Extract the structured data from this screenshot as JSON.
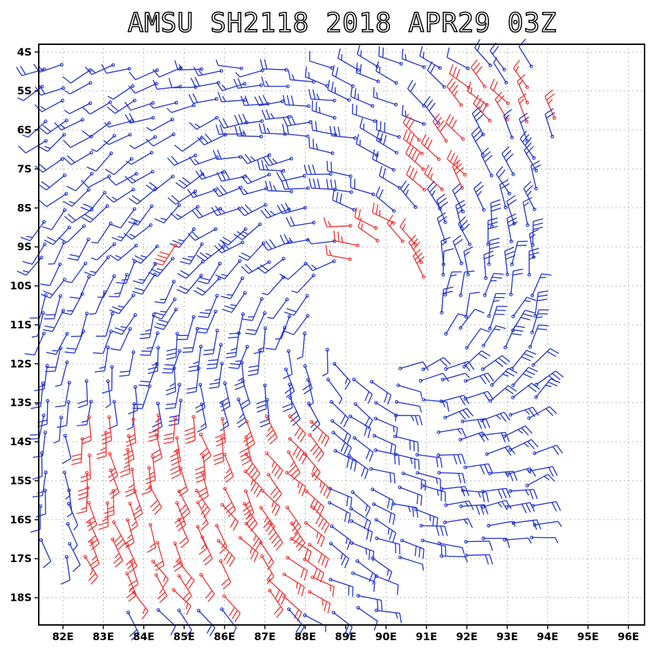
{
  "title": "AMSU SH2118 2018 APR29 03Z",
  "chart_data": {
    "type": "wind-barb",
    "title": "AMSU SH2118 2018 APR29 03Z",
    "xlabel": "",
    "ylabel": "",
    "xlim": [
      81.4,
      96.4
    ],
    "ylim": [
      -18.7,
      -3.8
    ],
    "x_ticks": [
      82,
      83,
      84,
      85,
      86,
      87,
      88,
      89,
      90,
      91,
      92,
      93,
      94,
      95,
      96
    ],
    "x_tick_labels": [
      "82E",
      "83E",
      "84E",
      "85E",
      "86E",
      "87E",
      "88E",
      "89E",
      "90E",
      "91E",
      "92E",
      "93E",
      "94E",
      "95E",
      "96E"
    ],
    "y_ticks": [
      -4,
      -5,
      -6,
      -7,
      -8,
      -9,
      -10,
      -11,
      -12,
      -13,
      -14,
      -15,
      -16,
      -17,
      -18
    ],
    "y_tick_labels": [
      "4S",
      "5S",
      "6S",
      "7S",
      "8S",
      "9S",
      "10S",
      "11S",
      "12S",
      "13S",
      "14S",
      "15S",
      "16S",
      "17S",
      "18S"
    ],
    "grid": true,
    "circulation_center": {
      "lon": 89.7,
      "lat": -10.8
    },
    "legend": "none",
    "series": [
      {
        "name": "lower wind speed",
        "color": "#2233cc"
      },
      {
        "name": "higher wind speed",
        "color": "#ee3333"
      }
    ],
    "red_regions": [
      {
        "lon": [
          91.6,
          94.5
        ],
        "lat": [
          -4.8,
          -6.0
        ]
      },
      {
        "lon": [
          90.7,
          92.0
        ],
        "lat": [
          -6.2,
          -7.8
        ]
      },
      {
        "lon": [
          88.8,
          91.4
        ],
        "lat": [
          -8.3,
          -10.5
        ]
      },
      {
        "lon": [
          82.2,
          88.3
        ],
        "lat": [
          -13.2,
          -18.0
        ]
      },
      {
        "lon": [
          84.6,
          85.3
        ],
        "lat": [
          -8.7,
          -9.1
        ]
      }
    ]
  }
}
